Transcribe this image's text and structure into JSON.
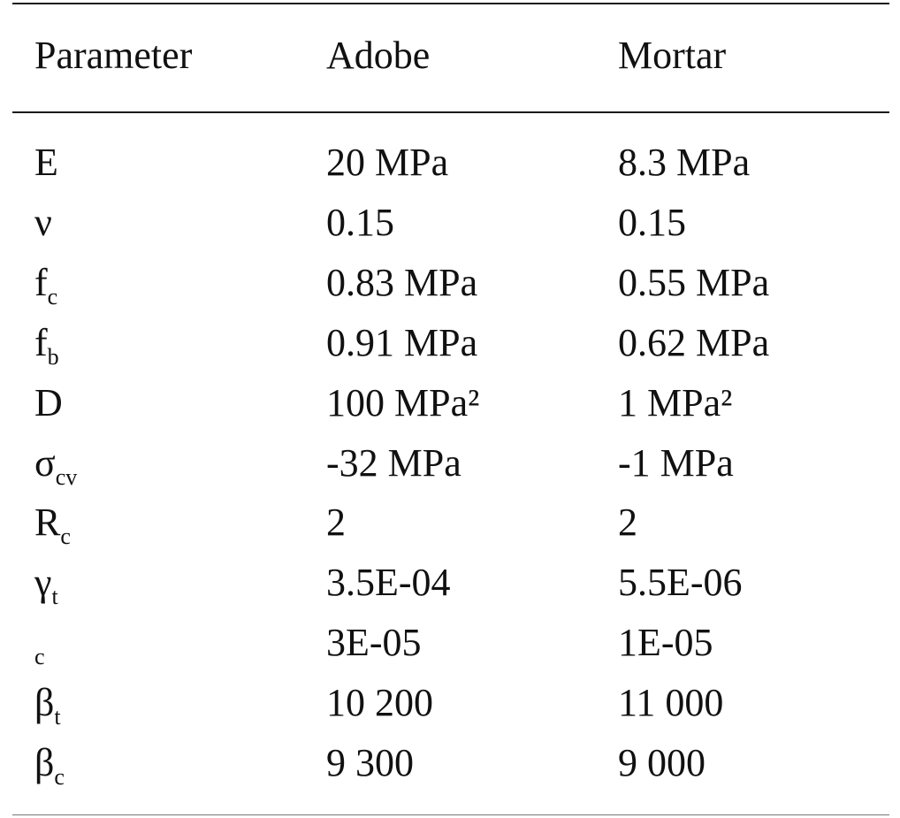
{
  "table": {
    "headers": [
      "Parameter",
      "Adobe",
      "Mortar"
    ],
    "rows": [
      {
        "param": "E",
        "sub": "",
        "adobe": "20 MPa",
        "mortar": "8.3 MPa"
      },
      {
        "param": "ν",
        "sub": "",
        "adobe": "0.15",
        "mortar": "0.15"
      },
      {
        "param": "f",
        "sub": "c",
        "adobe": "0.83 MPa",
        "mortar": "0.55 MPa"
      },
      {
        "param": "f",
        "sub": "b",
        "adobe": "0.91 MPa",
        "mortar": "0.62 MPa"
      },
      {
        "param": "D",
        "sub": "",
        "adobe": "100 MPa²",
        "mortar": "1 MPa²"
      },
      {
        "param": "σ",
        "sub": "cv",
        "adobe": "-32 MPa",
        "mortar": "-1 MPa"
      },
      {
        "param": "R",
        "sub": "c",
        "adobe": "2",
        "mortar": "2"
      },
      {
        "param": "γ",
        "sub": "t",
        "adobe": "3.5E-04",
        "mortar": "5.5E-06"
      },
      {
        "param": "",
        "sub": "c",
        "adobe": "3E-05",
        "mortar": "1E-05"
      },
      {
        "param": "β",
        "sub": "t",
        "adobe": "10 200",
        "mortar": "11 000"
      },
      {
        "param": "β",
        "sub": "c",
        "adobe": "9 300",
        "mortar": "9 000"
      }
    ]
  }
}
